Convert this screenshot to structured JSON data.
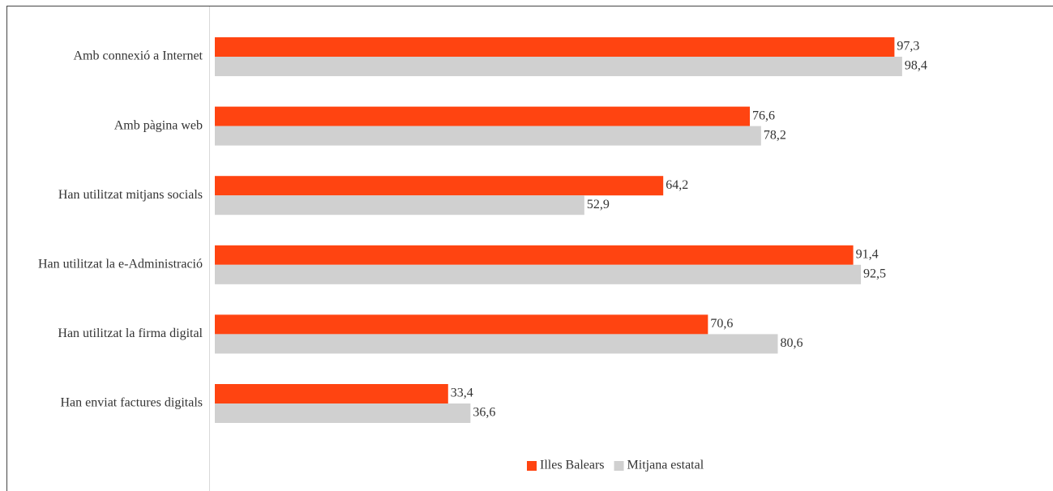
{
  "chart_data": {
    "type": "barh",
    "categories": [
      "Amb connexió a Internet",
      "Amb pàgina web",
      "Han utilitzat mitjans socials",
      "Han utilitzat la e-Administració",
      "Han utilitzat la firma digital",
      "Han enviat factures digitals"
    ],
    "series": [
      {
        "name": "Illes Balears",
        "color": "#ff4411",
        "values": [
          97.3,
          76.6,
          64.2,
          91.4,
          70.6,
          33.4
        ],
        "value_labels": [
          "97,3",
          "76,6",
          "64,2",
          "91,4",
          "70,6",
          "33,4"
        ]
      },
      {
        "name": "Mitjana estatal",
        "color": "#d0d0d0",
        "values": [
          98.4,
          78.2,
          52.9,
          92.5,
          80.6,
          36.6
        ],
        "value_labels": [
          "98,4",
          "78,2",
          "52,9",
          "92,5",
          "80,6",
          "36,6"
        ]
      }
    ],
    "xlim": [
      0,
      120
    ],
    "legend": "bottom"
  }
}
